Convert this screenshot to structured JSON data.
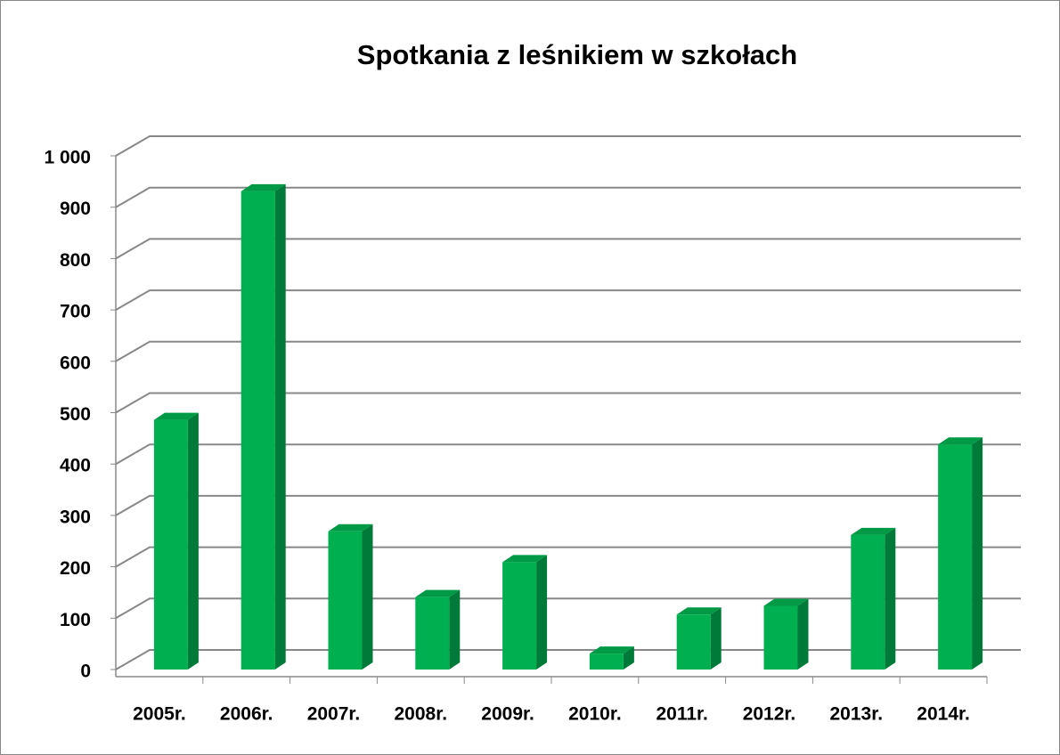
{
  "chart_data": {
    "type": "bar3d",
    "title": "Spotkania z leśnikiem w szkołach",
    "categories": [
      "2005r.",
      "2006r.",
      "2007r.",
      "2008r.",
      "2009r.",
      "2010r.",
      "2011r.",
      "2012r.",
      "2013r.",
      "2014r."
    ],
    "values": [
      486,
      931,
      269,
      141,
      209,
      31,
      107,
      124,
      262,
      438
    ],
    "color": "#00b050",
    "ylim": [
      0,
      1000
    ],
    "yticks": [
      0,
      100,
      200,
      300,
      400,
      500,
      600,
      700,
      800,
      900,
      {
        "value": 1000,
        "label": "1 000"
      }
    ],
    "grid": true
  }
}
